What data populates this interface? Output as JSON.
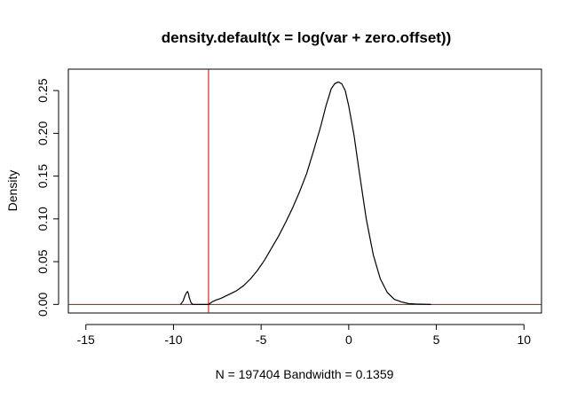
{
  "chart_data": {
    "type": "line",
    "title": "density.default(x = log(var + zero.offset))",
    "xlabel": "N = 197404   Bandwidth = 0.1359",
    "ylabel": "Density",
    "xlim": [
      -16,
      11
    ],
    "ylim": [
      -0.01,
      0.275
    ],
    "x_ticks": [
      -15,
      -10,
      -5,
      0,
      5,
      10
    ],
    "x_tick_labels": [
      "-15",
      "-10",
      "-5",
      "0",
      "5",
      "10"
    ],
    "y_ticks": [
      0.0,
      0.05,
      0.1,
      0.15,
      0.2,
      0.25
    ],
    "y_tick_labels": [
      "0.00",
      "0.05",
      "0.10",
      "0.15",
      "0.20",
      "0.25"
    ],
    "grid": false,
    "series": [
      {
        "color": "#000000",
        "x": [
          -9.6,
          -9.45,
          -9.35,
          -9.25,
          -9.2,
          -9.15,
          -9.1,
          -9.0,
          -8.9,
          -8.8,
          -8.6,
          -8.3,
          -8.0,
          -7.8,
          -7.6,
          -7.3,
          -7.0,
          -6.7,
          -6.4,
          -6.0,
          -5.6,
          -5.2,
          -4.8,
          -4.4,
          -4.0,
          -3.6,
          -3.2,
          -2.8,
          -2.4,
          -2.0,
          -1.6,
          -1.3,
          -1.0,
          -0.8,
          -0.6,
          -0.4,
          -0.2,
          0.0,
          0.3,
          0.6,
          1.0,
          1.4,
          1.8,
          2.2,
          2.6,
          3.0,
          3.4,
          3.8,
          4.2,
          4.7
        ],
        "y": [
          0.0,
          0.004,
          0.01,
          0.014,
          0.015,
          0.013,
          0.008,
          0.002,
          0.0,
          0.0,
          0.0,
          0.0,
          0.0,
          0.003,
          0.005,
          0.007,
          0.01,
          0.013,
          0.016,
          0.022,
          0.03,
          0.04,
          0.052,
          0.066,
          0.08,
          0.096,
          0.113,
          0.132,
          0.153,
          0.18,
          0.208,
          0.232,
          0.252,
          0.258,
          0.26,
          0.258,
          0.25,
          0.232,
          0.198,
          0.155,
          0.1,
          0.058,
          0.03,
          0.014,
          0.006,
          0.003,
          0.001,
          0.0005,
          0.0002,
          0.0
        ]
      }
    ],
    "reference_lines": {
      "vertical": {
        "x": -8,
        "color": "#cc0000"
      },
      "horizontal": {
        "y": 0,
        "color": "#cc0000"
      }
    }
  }
}
